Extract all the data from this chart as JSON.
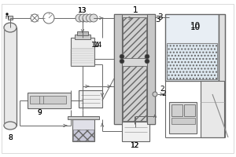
{
  "bg": "white",
  "lc": "#666666",
  "lw": 0.7,
  "label_fs": 6.5
}
